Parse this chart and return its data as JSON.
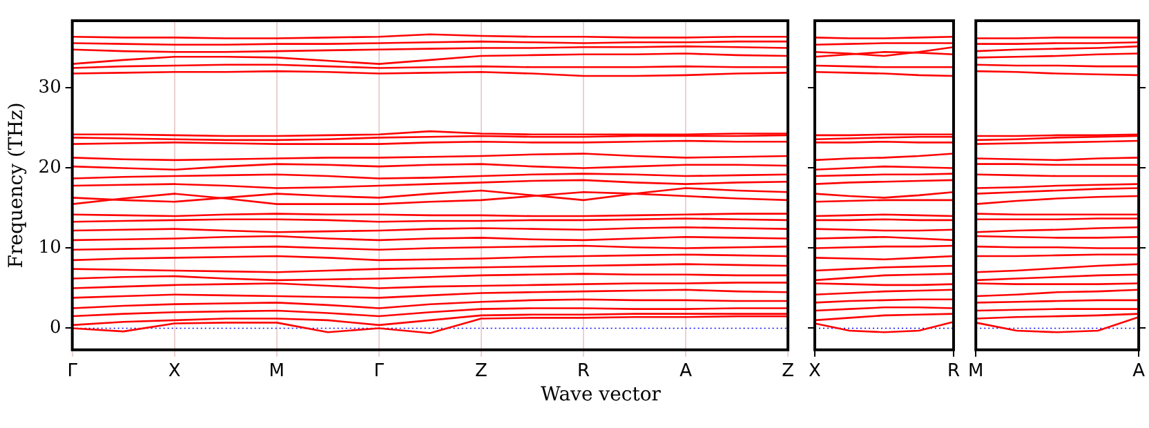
{
  "chart_data": [
    {
      "type": "line",
      "xlabel": "Wave vector",
      "ylabel": "Frequency (THz)",
      "color": "#ff0000",
      "line_style": "solid",
      "marker": "none",
      "grid": "x",
      "legend": false,
      "categories": [
        "Γ",
        null,
        "X",
        null,
        "M",
        null,
        "Γ",
        null,
        "Z",
        null,
        "R",
        null,
        "A",
        null,
        "Z"
      ],
      "ylim": [
        -2.7,
        38.4
      ],
      "yticks": [
        0,
        10,
        20,
        30
      ],
      "ref_lines": [
        {
          "axis": "y",
          "value": 0,
          "color": "#0000ff",
          "line_style": "dotted"
        }
      ],
      "series": [
        {
          "values": [
            0,
            -0.4,
            0.6,
            0.7,
            0.7,
            -0.5,
            0,
            -0.6,
            1.2,
            1.3,
            1.3,
            1.4,
            1.4,
            1.5,
            1.5
          ]
        },
        {
          "values": [
            0.4,
            0.8,
            1.0,
            1.2,
            1.2,
            1.0,
            0.4,
            1.0,
            1.6,
            1.7,
            1.7,
            1.8,
            1.8,
            1.8,
            1.8
          ]
        },
        {
          "values": [
            1.5,
            1.8,
            2.0,
            2.1,
            2.2,
            1.9,
            1.5,
            2.0,
            2.4,
            2.5,
            2.5,
            2.4,
            2.4,
            2.5,
            2.5
          ]
        },
        {
          "values": [
            2.5,
            2.8,
            3.0,
            3.1,
            3.2,
            2.9,
            2.5,
            3.0,
            3.3,
            3.5,
            3.6,
            3.5,
            3.5,
            3.4,
            3.4
          ]
        },
        {
          "values": [
            3.8,
            4.0,
            4.2,
            4.1,
            4.0,
            3.9,
            3.8,
            4.1,
            4.4,
            4.5,
            4.6,
            4.7,
            4.8,
            4.6,
            4.5
          ]
        },
        {
          "values": [
            5.0,
            5.2,
            5.4,
            5.5,
            5.6,
            5.3,
            5.0,
            5.2,
            5.3,
            5.4,
            5.5,
            5.6,
            5.6,
            5.7,
            5.7
          ]
        },
        {
          "values": [
            6.2,
            6.4,
            6.5,
            6.2,
            6.0,
            6.1,
            6.2,
            6.4,
            6.6,
            6.7,
            6.8,
            6.7,
            6.7,
            6.6,
            6.6
          ]
        },
        {
          "values": [
            7.4,
            7.3,
            7.2,
            7.1,
            7.0,
            7.2,
            7.4,
            7.5,
            7.6,
            7.7,
            7.8,
            7.9,
            8.0,
            7.9,
            7.8
          ]
        },
        {
          "values": [
            8.5,
            8.7,
            8.8,
            8.9,
            9.0,
            8.8,
            8.5,
            8.6,
            8.7,
            8.9,
            9.0,
            9.1,
            9.2,
            9.1,
            9.0
          ]
        },
        {
          "values": [
            9.8,
            9.9,
            10.0,
            10.1,
            10.2,
            10.0,
            9.8,
            10.0,
            10.1,
            10.2,
            10.3,
            10.1,
            10.0,
            10.1,
            10.2
          ]
        },
        {
          "values": [
            11.0,
            11.1,
            11.2,
            11.4,
            11.5,
            11.2,
            11.0,
            11.2,
            11.3,
            11.1,
            11.0,
            11.2,
            11.4,
            11.3,
            11.2
          ]
        },
        {
          "values": [
            12.2,
            12.3,
            12.4,
            12.2,
            12.0,
            12.1,
            12.2,
            12.4,
            12.5,
            12.4,
            12.3,
            12.5,
            12.6,
            12.5,
            12.4
          ]
        },
        {
          "values": [
            13.3,
            13.4,
            13.5,
            13.6,
            13.6,
            13.5,
            13.3,
            13.4,
            13.4,
            13.5,
            13.5,
            13.6,
            13.7,
            13.6,
            13.5
          ]
        },
        {
          "values": [
            14.2,
            14.1,
            14.0,
            14.2,
            14.3,
            14.2,
            14.2,
            14.1,
            14.1,
            14.0,
            14.0,
            14.1,
            14.2,
            14.3,
            14.3
          ]
        },
        {
          "values": [
            15.5,
            16.2,
            16.8,
            16.2,
            15.5,
            15.5,
            15.5,
            15.8,
            16.0,
            16.5,
            17.0,
            16.8,
            16.5,
            16.2,
            16.0
          ]
        },
        {
          "values": [
            16.3,
            16.0,
            15.8,
            16.3,
            16.8,
            16.5,
            16.3,
            16.8,
            17.2,
            16.6,
            16.0,
            16.8,
            17.5,
            17.2,
            17.0
          ]
        },
        {
          "values": [
            17.8,
            17.9,
            18.0,
            17.8,
            17.5,
            17.6,
            17.8,
            18.0,
            18.2,
            18.4,
            18.5,
            18.2,
            18.0,
            18.2,
            18.3
          ]
        },
        {
          "values": [
            18.7,
            18.9,
            19.0,
            19.1,
            19.2,
            19.0,
            18.7,
            18.8,
            19.0,
            19.2,
            19.3,
            19.2,
            19.0,
            19.1,
            19.2
          ]
        },
        {
          "values": [
            20.2,
            20.0,
            19.8,
            20.2,
            20.5,
            20.4,
            20.2,
            20.4,
            20.5,
            20.2,
            20.0,
            20.2,
            20.4,
            20.4,
            20.3
          ]
        },
        {
          "values": [
            21.3,
            21.1,
            21.0,
            21.1,
            21.2,
            21.3,
            21.3,
            21.4,
            21.5,
            21.7,
            21.8,
            21.5,
            21.3,
            21.4,
            21.5
          ]
        },
        {
          "values": [
            23.0,
            23.1,
            23.2,
            23.1,
            23.0,
            23.0,
            23.0,
            23.2,
            23.3,
            23.2,
            23.2,
            23.3,
            23.4,
            23.3,
            23.3
          ]
        },
        {
          "values": [
            23.8,
            23.7,
            23.6,
            23.5,
            23.5,
            23.6,
            23.8,
            23.9,
            24.0,
            23.9,
            23.9,
            24.0,
            24.0,
            24.0,
            24.1
          ]
        },
        {
          "values": [
            24.2,
            24.2,
            24.1,
            24.0,
            24.0,
            24.1,
            24.2,
            24.6,
            24.3,
            24.2,
            24.2,
            24.2,
            24.2,
            24.3,
            24.3
          ]
        },
        {
          "values": [
            31.8,
            31.9,
            32.0,
            32.0,
            32.1,
            32.0,
            31.8,
            31.9,
            32.0,
            31.8,
            31.5,
            31.5,
            31.6,
            31.8,
            31.9
          ]
        },
        {
          "values": [
            32.5,
            32.7,
            32.8,
            32.9,
            32.9,
            32.7,
            32.5,
            32.6,
            32.7,
            32.6,
            32.6,
            32.6,
            32.7,
            32.6,
            32.6
          ]
        },
        {
          "values": [
            33.0,
            33.5,
            33.9,
            33.9,
            33.8,
            33.4,
            33.0,
            33.5,
            34.0,
            34.1,
            34.2,
            34.2,
            34.3,
            34.1,
            34.0
          ]
        },
        {
          "values": [
            34.8,
            34.6,
            34.5,
            34.5,
            34.6,
            34.7,
            34.8,
            34.9,
            35.0,
            35.0,
            35.1,
            35.1,
            35.2,
            35.1,
            35.0
          ]
        },
        {
          "values": [
            35.6,
            35.5,
            35.4,
            35.4,
            35.5,
            35.5,
            35.6,
            35.7,
            35.8,
            35.7,
            35.6,
            35.7,
            35.7,
            35.8,
            35.8
          ]
        },
        {
          "values": [
            36.4,
            36.3,
            36.3,
            36.2,
            36.2,
            36.3,
            36.4,
            36.7,
            36.5,
            36.4,
            36.4,
            36.3,
            36.3,
            36.4,
            36.4
          ]
        }
      ]
    },
    {
      "type": "line",
      "color": "#ff0000",
      "line_style": "solid",
      "marker": "none",
      "grid": false,
      "legend": false,
      "tick_labels": "x",
      "categories": [
        "X",
        null,
        null,
        null,
        "R"
      ],
      "ylim": [
        -2.7,
        38.4
      ],
      "yticks": [
        0,
        10,
        20,
        30
      ],
      "ref_lines": [
        {
          "axis": "y",
          "value": 0,
          "color": "#0000ff",
          "line_style": "dotted"
        }
      ],
      "series": [
        {
          "values": [
            0.6,
            -0.3,
            -0.5,
            -0.3,
            0.8
          ]
        },
        {
          "values": [
            1.0,
            1.3,
            1.6,
            1.7,
            1.8
          ]
        },
        {
          "values": [
            2.2,
            2.4,
            2.6,
            2.6,
            2.5
          ]
        },
        {
          "values": [
            3.2,
            3.4,
            3.5,
            3.6,
            3.6
          ]
        },
        {
          "values": [
            4.2,
            4.4,
            4.6,
            4.7,
            4.8
          ]
        },
        {
          "values": [
            5.6,
            5.5,
            5.4,
            5.4,
            5.5
          ]
        },
        {
          "values": [
            6.0,
            6.3,
            6.6,
            6.7,
            6.8
          ]
        },
        {
          "values": [
            7.2,
            7.4,
            7.6,
            7.7,
            7.8
          ]
        },
        {
          "values": [
            8.8,
            8.7,
            8.6,
            8.8,
            9.0
          ]
        },
        {
          "values": [
            10.0,
            10.1,
            10.2,
            10.2,
            10.3
          ]
        },
        {
          "values": [
            11.2,
            11.3,
            11.4,
            11.2,
            11.0
          ]
        },
        {
          "values": [
            12.4,
            12.3,
            12.2,
            12.2,
            12.3
          ]
        },
        {
          "values": [
            13.5,
            13.5,
            13.6,
            13.5,
            13.5
          ]
        },
        {
          "values": [
            14.0,
            14.1,
            14.2,
            14.1,
            14.0
          ]
        },
        {
          "values": [
            16.8,
            16.5,
            16.3,
            16.6,
            17.0
          ]
        },
        {
          "values": [
            15.8,
            15.9,
            16.0,
            16.0,
            16.0
          ]
        },
        {
          "values": [
            18.0,
            18.2,
            18.3,
            18.4,
            18.5
          ]
        },
        {
          "values": [
            19.0,
            19.1,
            19.2,
            19.2,
            19.3
          ]
        },
        {
          "values": [
            19.8,
            20.0,
            20.2,
            20.1,
            20.0
          ]
        },
        {
          "values": [
            21.0,
            21.2,
            21.3,
            21.5,
            21.8
          ]
        },
        {
          "values": [
            23.2,
            23.2,
            23.3,
            23.2,
            23.2
          ]
        },
        {
          "values": [
            23.6,
            23.7,
            23.8,
            23.9,
            23.9
          ]
        },
        {
          "values": [
            24.1,
            24.1,
            24.2,
            24.2,
            24.2
          ]
        },
        {
          "values": [
            32.0,
            31.9,
            31.8,
            31.6,
            31.5
          ]
        },
        {
          "values": [
            32.8,
            32.7,
            32.6,
            32.6,
            32.6
          ]
        },
        {
          "values": [
            33.9,
            34.2,
            34.5,
            34.4,
            34.2
          ]
        },
        {
          "values": [
            34.5,
            34.3,
            34.0,
            34.5,
            35.1
          ]
        },
        {
          "values": [
            35.4,
            35.5,
            35.6,
            35.6,
            35.6
          ]
        },
        {
          "values": [
            36.3,
            36.2,
            36.2,
            36.3,
            36.4
          ]
        }
      ]
    },
    {
      "type": "line",
      "color": "#ff0000",
      "line_style": "solid",
      "marker": "none",
      "grid": false,
      "legend": false,
      "tick_labels": "x",
      "categories": [
        "M",
        null,
        null,
        null,
        "A"
      ],
      "ylim": [
        -2.7,
        38.4
      ],
      "yticks": [
        0,
        10,
        20,
        30
      ],
      "ref_lines": [
        {
          "axis": "y",
          "value": 0,
          "color": "#0000ff",
          "line_style": "dotted"
        }
      ],
      "series": [
        {
          "values": [
            0.7,
            -0.3,
            -0.5,
            -0.3,
            1.4
          ]
        },
        {
          "values": [
            1.2,
            1.4,
            1.5,
            1.6,
            1.8
          ]
        },
        {
          "values": [
            2.2,
            2.3,
            2.4,
            2.4,
            2.4
          ]
        },
        {
          "values": [
            3.2,
            3.3,
            3.4,
            3.5,
            3.5
          ]
        },
        {
          "values": [
            4.0,
            4.2,
            4.5,
            4.6,
            4.8
          ]
        },
        {
          "values": [
            5.6,
            5.5,
            5.5,
            5.5,
            5.6
          ]
        },
        {
          "values": [
            6.0,
            6.2,
            6.4,
            6.6,
            6.7
          ]
        },
        {
          "values": [
            7.0,
            7.2,
            7.5,
            7.8,
            8.0
          ]
        },
        {
          "values": [
            9.0,
            9.0,
            9.1,
            9.2,
            9.2
          ]
        },
        {
          "values": [
            10.2,
            10.1,
            10.1,
            10.0,
            10.0
          ]
        },
        {
          "values": [
            11.5,
            11.4,
            11.3,
            11.3,
            11.4
          ]
        },
        {
          "values": [
            12.0,
            12.2,
            12.3,
            12.5,
            12.6
          ]
        },
        {
          "values": [
            13.6,
            13.6,
            13.6,
            13.7,
            13.7
          ]
        },
        {
          "values": [
            14.3,
            14.2,
            14.2,
            14.2,
            14.2
          ]
        },
        {
          "values": [
            15.5,
            15.9,
            16.2,
            16.4,
            16.5
          ]
        },
        {
          "values": [
            16.8,
            17.0,
            17.2,
            17.4,
            17.5
          ]
        },
        {
          "values": [
            17.5,
            17.6,
            17.8,
            17.9,
            18.0
          ]
        },
        {
          "values": [
            19.2,
            19.1,
            19.0,
            19.0,
            19.0
          ]
        },
        {
          "values": [
            20.5,
            20.5,
            20.4,
            20.4,
            20.4
          ]
        },
        {
          "values": [
            21.2,
            21.1,
            21.0,
            21.2,
            21.3
          ]
        },
        {
          "values": [
            23.0,
            23.1,
            23.2,
            23.3,
            23.4
          ]
        },
        {
          "values": [
            23.5,
            23.6,
            23.8,
            23.9,
            24.0
          ]
        },
        {
          "values": [
            24.0,
            24.0,
            24.1,
            24.1,
            24.2
          ]
        },
        {
          "values": [
            32.1,
            32.0,
            31.8,
            31.7,
            31.6
          ]
        },
        {
          "values": [
            32.9,
            32.8,
            32.8,
            32.7,
            32.7
          ]
        },
        {
          "values": [
            33.8,
            33.9,
            34.0,
            34.2,
            34.3
          ]
        },
        {
          "values": [
            34.6,
            34.8,
            34.9,
            35.0,
            35.2
          ]
        },
        {
          "values": [
            35.5,
            35.5,
            35.6,
            35.6,
            35.7
          ]
        },
        {
          "values": [
            36.2,
            36.2,
            36.3,
            36.3,
            36.3
          ]
        }
      ]
    }
  ]
}
